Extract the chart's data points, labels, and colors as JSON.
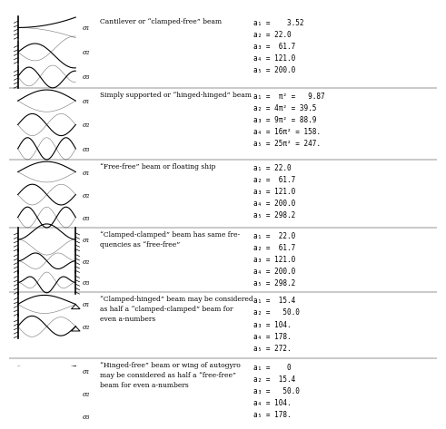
{
  "bg_color": "#ffffff",
  "btypes": [
    "cantilever",
    "hinged",
    "free_free",
    "clamped_clamped",
    "clamped_hinged",
    "hinged_free"
  ],
  "n_modes_per_sec": [
    3,
    3,
    3,
    3,
    2,
    3
  ],
  "sec_tops": [
    0.98,
    0.775,
    0.575,
    0.385,
    0.205,
    0.02
  ],
  "sec_bottoms": [
    0.775,
    0.575,
    0.385,
    0.205,
    0.02,
    -0.17
  ],
  "section_labels": [
    "Cantilever or “clamped-free” beam",
    "Simply supported or “hinged-hinged” beam",
    "“Free-free” beam or floating ship",
    "“Clamped-clamped” beam has same fre-\nquencies as “free-free”",
    "“Clamped-hinged” beam may be considered\nas half a “clamped-clamped” beam for\neven a-numbers",
    "“Hinged-free” beam or wing of autogyro\nmay be considered as half a “free-free”\nbeam for even a-numbers"
  ],
  "all_freqs": [
    "a₁ =    3.52",
    "a₂ = 22.0",
    "a₃ =  61.7",
    "a₄ = 121.0",
    "a₅ = 200.0",
    "a₁ =  π² =   9.87",
    "a₂ = 4π² = 39.5",
    "a₃ = 9π² = 88.9",
    "a₄ = 16π² = 158.",
    "a₅ = 25π² = 247.",
    "a₁ = 22.0",
    "a₂ =  61.7",
    "a₃ = 121.0",
    "a₄ = 200.0",
    "a₅ = 298.2",
    "a₁ =  22.0",
    "a₂ =  61.7",
    "a₃ = 121.0",
    "a₄ = 200.0",
    "a₅ = 298.2",
    "a₁ =  15.4",
    "a₂ =   50.0",
    "a₃ = 104.",
    "a₄ = 178.",
    "a₅ = 272.",
    "a₁ =    0",
    "a₂ =  15.4",
    "a₃ =   50.0",
    "a₄ = 104.",
    "a₅ = 178."
  ],
  "freq_indices": [
    0,
    5,
    10,
    15,
    20,
    25
  ],
  "sigma_labels": [
    "σ₁",
    "σ₂",
    "σ₃"
  ]
}
